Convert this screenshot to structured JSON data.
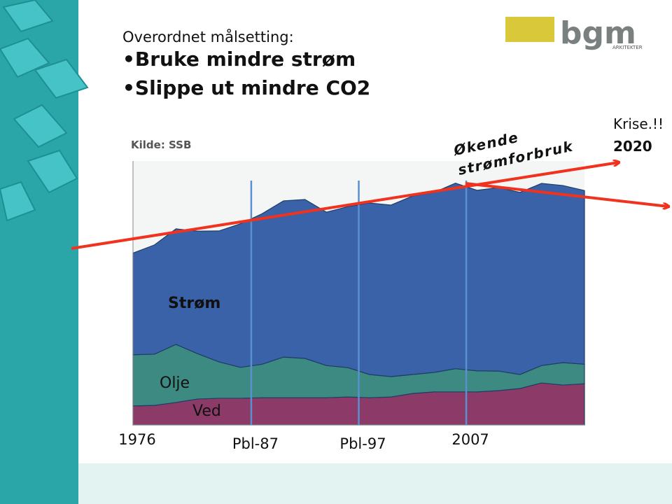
{
  "slide": {
    "title_lines": [
      "Overordnet målsetting:",
      "•Bruke mindre strøm",
      "•Slippe ut mindre CO2"
    ],
    "logo": "bgm",
    "logo_sub": "ARKITEKTER",
    "source": "Kilde: SSB",
    "annotations": [
      "Økende",
      "strømforbruk",
      "Krise.!!",
      "2020"
    ]
  },
  "chart_data": {
    "type": "stacked-area",
    "x": [
      1976,
      1978,
      1980,
      1982,
      1984,
      1986,
      1988,
      1990,
      1992,
      1994,
      1996,
      1998,
      2000,
      2002,
      2004,
      2006,
      2008,
      2010,
      2012,
      2014,
      2016,
      2018
    ],
    "xlim": [
      1976,
      2018
    ],
    "xticks": [
      1976,
      {
        "value": 1987,
        "label": "Pbl-87"
      },
      {
        "value": 1997,
        "label": "Pbl-97"
      },
      2007
    ],
    "ylim": [
      0,
      100
    ],
    "series": [
      {
        "name": "Ved",
        "color": "#8c3b68",
        "values": [
          7.2,
          7.4,
          8.5,
          9.8,
          10.1,
          10.1,
          10.3,
          10.3,
          10.3,
          10.3,
          10.6,
          10.3,
          10.6,
          11.9,
          12.5,
          12.5,
          12.5,
          13.0,
          13.8,
          15.9,
          15.1,
          15.6
        ]
      },
      {
        "name": "Olje",
        "color": "#3d8a82",
        "values": [
          19.4,
          19.4,
          22.0,
          17.2,
          13.8,
          11.7,
          12.7,
          15.4,
          14.9,
          12.2,
          11.1,
          8.8,
          7.7,
          7.2,
          7.4,
          8.8,
          8.0,
          7.4,
          5.3,
          6.6,
          8.5,
          7.4
        ]
      },
      {
        "name": "Strøm",
        "color": "#3a62a8",
        "values": [
          38.5,
          41.4,
          43.8,
          46.4,
          49.6,
          54.4,
          57.0,
          59.2,
          60.2,
          58.1,
          61.0,
          65.0,
          65.0,
          67.6,
          68.2,
          70.3,
          68.4,
          69.5,
          69.0,
          69.0,
          67.1,
          65.8
        ]
      }
    ]
  }
}
